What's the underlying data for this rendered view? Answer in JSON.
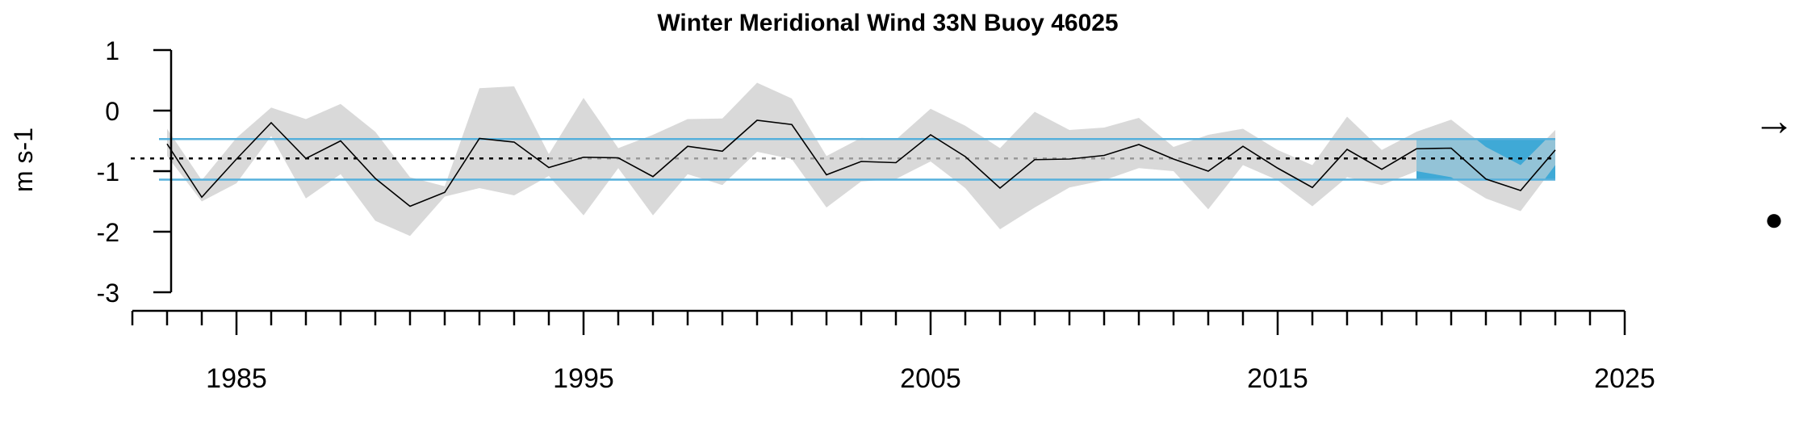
{
  "chart_data": {
    "type": "line",
    "title": "Winter Meridional Wind 33N Buoy 46025",
    "ylabel": "m s-1",
    "xlabel": "",
    "xlim": [
      1982,
      2025
    ],
    "ylim": [
      -3,
      1
    ],
    "y_ticks": [
      1,
      0,
      -1,
      -2,
      -3
    ],
    "y_tick_labels": [
      "1",
      "0",
      "-1",
      "-2",
      "-3"
    ],
    "x_major_ticks": [
      1985,
      1995,
      2005,
      2015,
      2025
    ],
    "x_tick_labels": [
      "1985",
      "1995",
      "2005",
      "2015",
      "2025"
    ],
    "x_minor_start": 1982,
    "x_minor_end": 2025,
    "mean": -0.79,
    "sd_upper": -0.47,
    "sd_lower": -1.14,
    "recent_period": [
      2019,
      2023
    ],
    "series": [
      {
        "x": [
          1983,
          1984,
          1985,
          1986,
          1987,
          1988,
          1989,
          1990,
          1991,
          1992,
          1993,
          1994,
          1995,
          1996,
          1997,
          1998,
          1999,
          2000,
          2001,
          2002,
          2003,
          2004,
          2005,
          2006,
          2007,
          2008,
          2009,
          2010,
          2011,
          2012,
          2013,
          2014,
          2015,
          2016,
          2017,
          2018,
          2019,
          2020,
          2021,
          2022,
          2023
        ],
        "values": [
          -0.55,
          -1.43,
          -0.8,
          -0.2,
          -0.79,
          -0.5,
          -1.12,
          -1.58,
          -1.35,
          -0.46,
          -0.52,
          -0.94,
          -0.77,
          -0.78,
          -1.09,
          -0.59,
          -0.67,
          -0.16,
          -0.23,
          -1.06,
          -0.84,
          -0.86,
          -0.4,
          -0.76,
          -1.28,
          -0.81,
          -0.8,
          -0.74,
          -0.56,
          -0.8,
          -1.0,
          -0.59,
          -0.95,
          -1.27,
          -0.64,
          -0.97,
          -0.63,
          -0.62,
          -1.13,
          -1.32,
          -0.65
        ],
        "upper": [
          -0.3,
          -1.15,
          -0.45,
          0.05,
          -0.14,
          0.11,
          -0.35,
          -1.1,
          -1.25,
          0.37,
          0.4,
          -0.72,
          0.21,
          -0.62,
          -0.4,
          -0.14,
          -0.13,
          0.46,
          0.2,
          -0.75,
          -0.45,
          -0.48,
          0.03,
          -0.25,
          -0.62,
          -0.02,
          -0.32,
          -0.28,
          -0.12,
          -0.6,
          -0.4,
          -0.3,
          -0.65,
          -0.9,
          -0.1,
          -0.65,
          -0.35,
          -0.15,
          -0.6,
          -0.9,
          -0.32
        ],
        "lower": [
          -0.75,
          -1.5,
          -1.2,
          -0.42,
          -1.45,
          -1.05,
          -1.82,
          -2.07,
          -1.42,
          -1.28,
          -1.4,
          -1.08,
          -1.73,
          -0.95,
          -1.73,
          -1.05,
          -1.23,
          -0.68,
          -0.8,
          -1.6,
          -1.17,
          -1.13,
          -0.84,
          -1.28,
          -1.96,
          -1.6,
          -1.27,
          -1.15,
          -0.95,
          -1.0,
          -1.63,
          -0.9,
          -1.15,
          -1.58,
          -1.1,
          -1.23,
          -1.0,
          -1.1,
          -1.45,
          -1.66,
          -0.9
        ]
      }
    ],
    "trend_symbol": "→",
    "mean_symbol": "●",
    "colors": {
      "band": "#d9d9d9",
      "sd_line": "#56b0dc",
      "recent_fill": "#3fa9d6",
      "line": "#000000",
      "mean_line": "#000000",
      "mean_line_mid": "#999999"
    }
  }
}
